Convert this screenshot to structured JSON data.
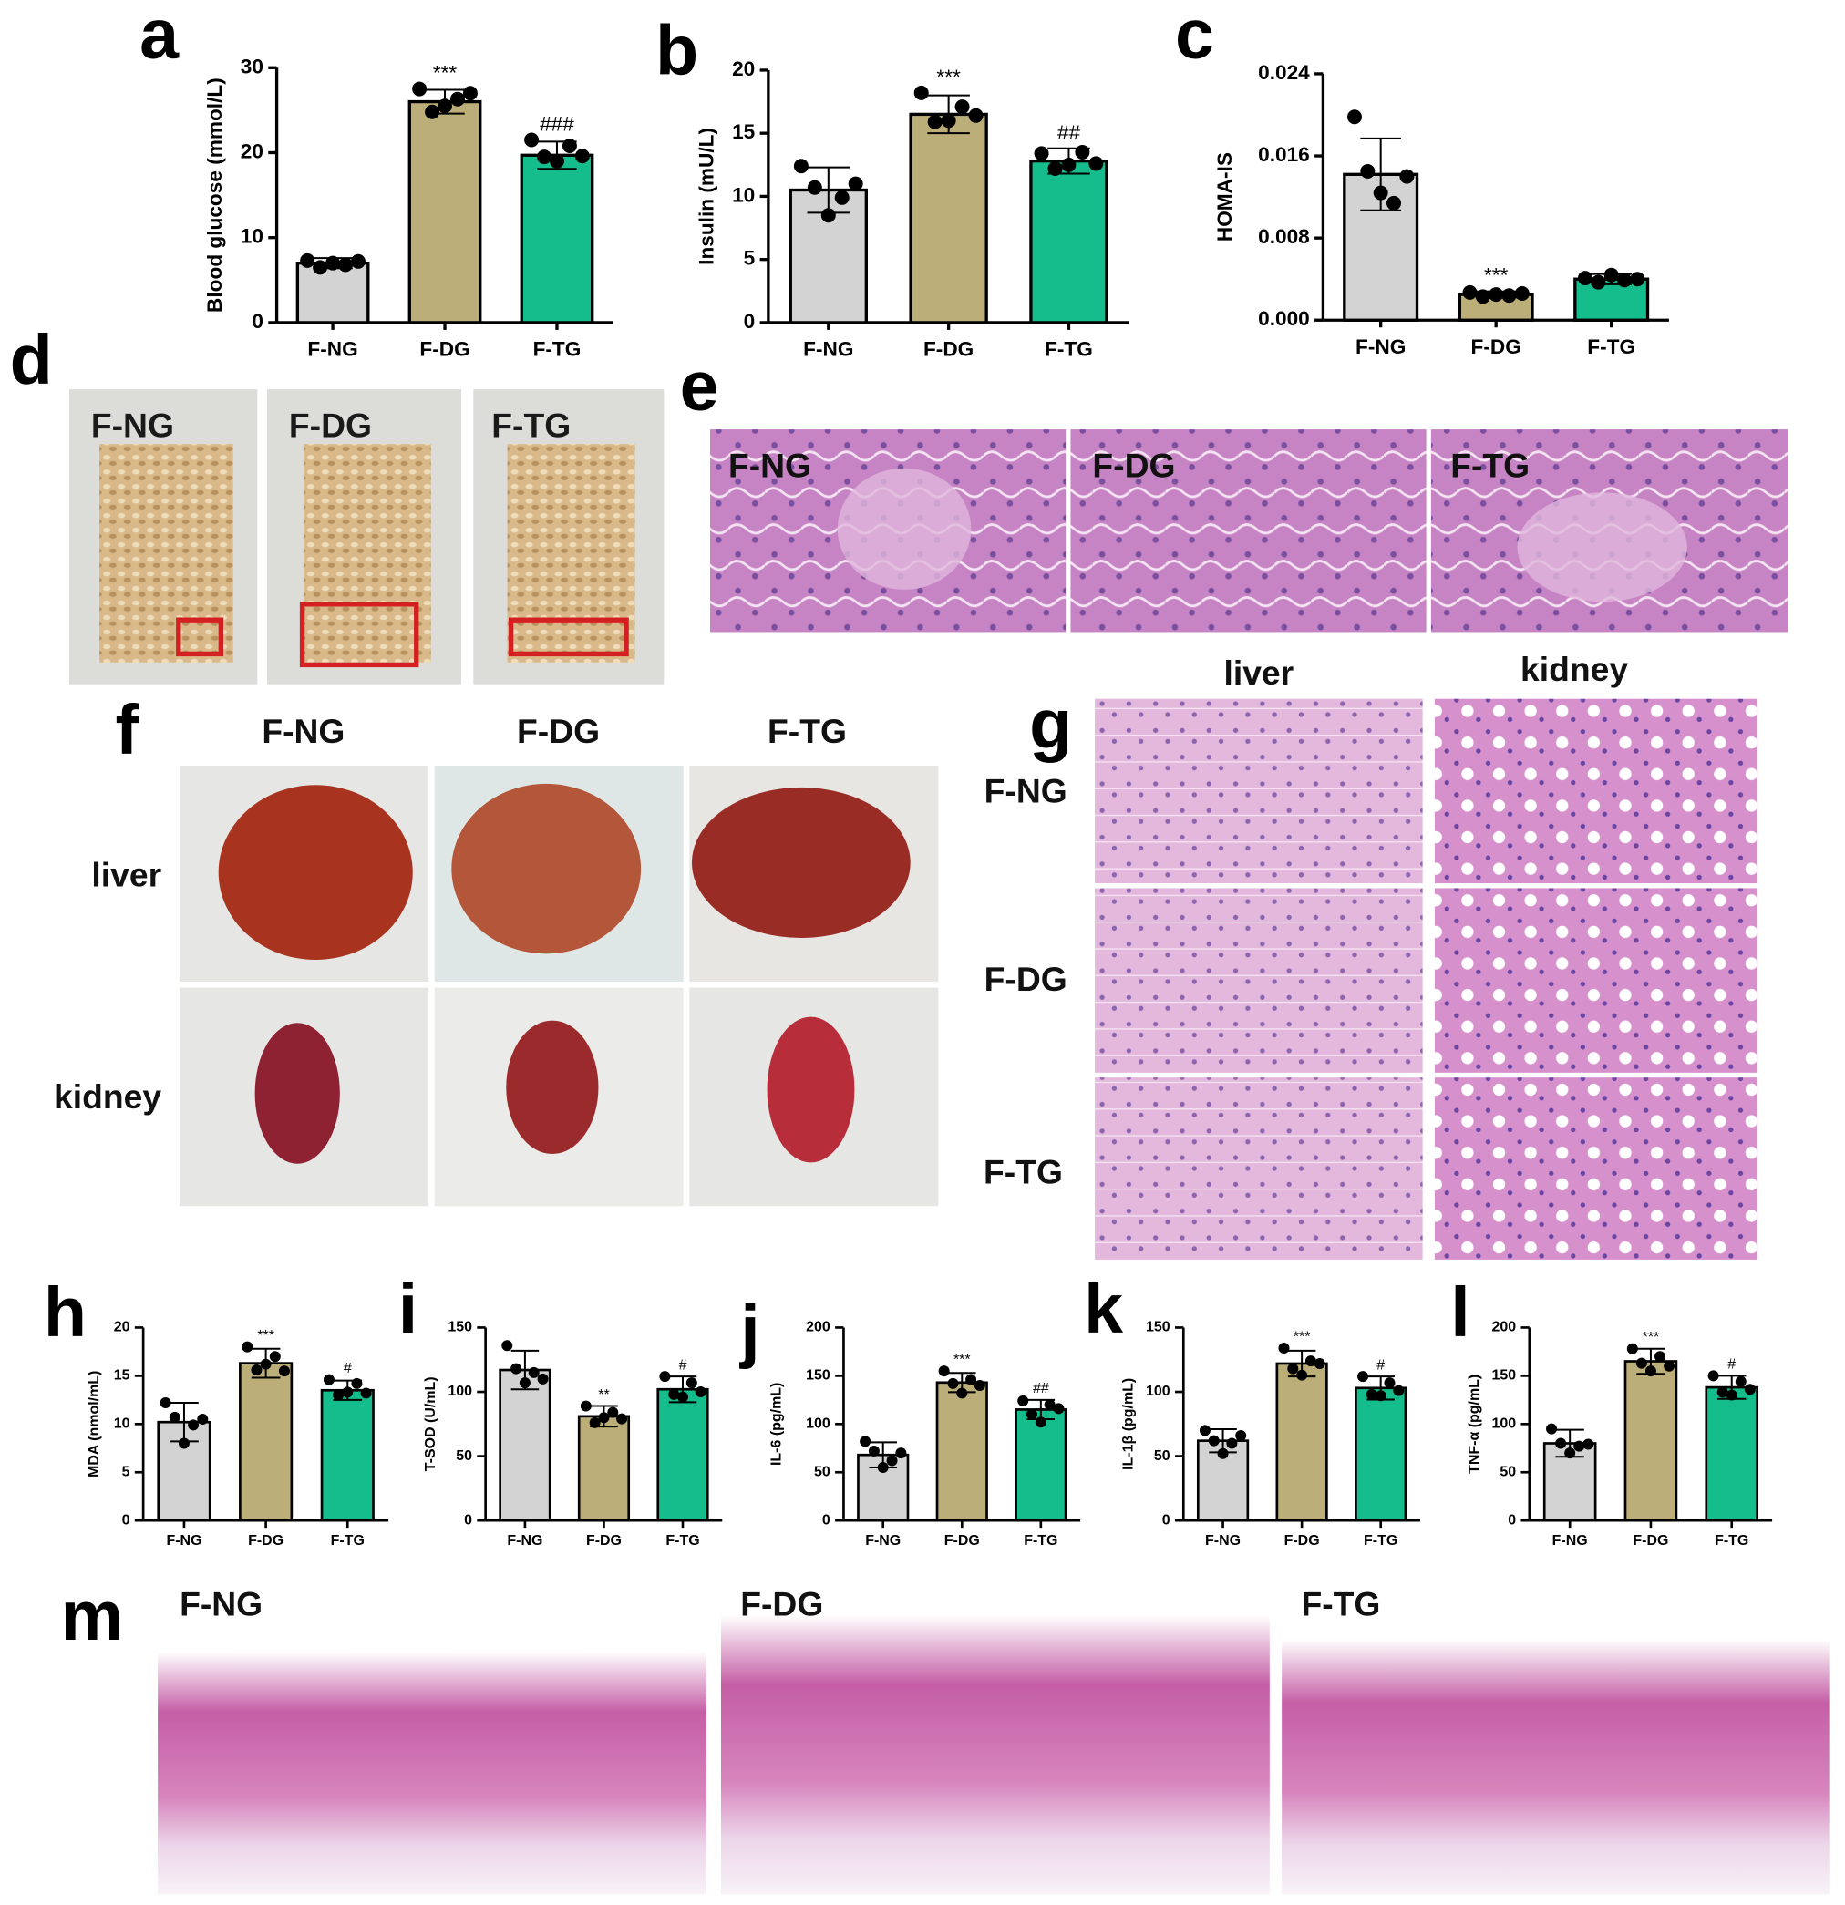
{
  "chart_data": [
    {
      "type": "bar",
      "panel": "a",
      "ylabel": "Blood glucose (mmol/L)",
      "categories": [
        "F-NG",
        "F-DG",
        "F-TG"
      ],
      "values": [
        7.0,
        26.0,
        19.7
      ],
      "errors": [
        0.6,
        1.4,
        1.6
      ],
      "points": [
        [
          7.3,
          6.5,
          7.0,
          6.8,
          7.2
        ],
        [
          27.5,
          24.8,
          25.5,
          26.3,
          27.0
        ],
        [
          21.5,
          19.5,
          19.0,
          20.8,
          19.6
        ]
      ],
      "annotations": [
        null,
        "***",
        "###"
      ],
      "colors": [
        "#d3d3d3",
        "#bcae78",
        "#14bd8b"
      ],
      "ylim": [
        0,
        30
      ],
      "yticks": [
        0,
        10,
        20,
        30
      ]
    },
    {
      "type": "bar",
      "panel": "b",
      "ylabel": "Insulin (mU/L)",
      "categories": [
        "F-NG",
        "F-DG",
        "F-TG"
      ],
      "values": [
        10.5,
        16.5,
        12.8
      ],
      "errors": [
        1.8,
        1.5,
        1.0
      ],
      "points": [
        [
          12.4,
          10.7,
          8.5,
          9.9,
          11.0
        ],
        [
          18.2,
          15.9,
          16.0,
          17.1,
          16.4
        ],
        [
          13.4,
          12.2,
          12.5,
          13.5,
          12.6
        ]
      ],
      "annotations": [
        null,
        "***",
        "##"
      ],
      "colors": [
        "#d3d3d3",
        "#bcae78",
        "#14bd8b"
      ],
      "ylim": [
        0,
        20
      ],
      "yticks": [
        0,
        5,
        10,
        15,
        20
      ]
    },
    {
      "type": "bar",
      "panel": "c",
      "ylabel": "HOMA-IS",
      "categories": [
        "F-NG",
        "F-DG",
        "F-TG"
      ],
      "values": [
        0.0142,
        0.0025,
        0.004
      ],
      "errors": [
        0.0035,
        0.0003,
        0.0005
      ],
      "points": [
        [
          0.0198,
          0.0145,
          0.0124,
          0.0114,
          0.014
        ],
        [
          0.0027,
          0.0023,
          0.0025,
          0.0024,
          0.0026
        ],
        [
          0.0041,
          0.0037,
          0.0044,
          0.0039,
          0.004
        ]
      ],
      "annotations": [
        null,
        "***",
        null
      ],
      "colors": [
        "#d3d3d3",
        "#bcae78",
        "#14bd8b"
      ],
      "ylim": [
        0,
        0.024
      ],
      "yticks": [
        {
          "value": 0,
          "label": "0.000"
        },
        {
          "value": 0.008,
          "label": "0.008"
        },
        {
          "value": 0.016,
          "label": "0.016"
        },
        {
          "value": 0.024,
          "label": "0.024"
        }
      ]
    },
    {
      "type": "bar",
      "panel": "h",
      "ylabel": "MDA (nmol/mL)",
      "categories": [
        "F-NG",
        "F-DG",
        "F-TG"
      ],
      "values": [
        10.2,
        16.3,
        13.5
      ],
      "errors": [
        2.0,
        1.5,
        1.0
      ],
      "points": [
        [
          12.2,
          10.7,
          8.0,
          9.9,
          10.5
        ],
        [
          18.0,
          15.6,
          16.2,
          17.0,
          15.5
        ],
        [
          14.6,
          13.0,
          13.3,
          14.2,
          13.2
        ]
      ],
      "annotations": [
        null,
        "***",
        "#"
      ],
      "colors": [
        "#d3d3d3",
        "#bcae78",
        "#14bd8b"
      ],
      "ylim": [
        0,
        20
      ],
      "yticks": [
        0,
        5,
        10,
        15,
        20
      ]
    },
    {
      "type": "bar",
      "panel": "i",
      "ylabel": "T-SOD (U/mL)",
      "categories": [
        "F-NG",
        "F-DG",
        "F-TG"
      ],
      "values": [
        117,
        81,
        102
      ],
      "errors": [
        15,
        8,
        10
      ],
      "points": [
        [
          136,
          118,
          107,
          115,
          110
        ],
        [
          89,
          76,
          80,
          84,
          79
        ],
        [
          112,
          98,
          96,
          107,
          100
        ]
      ],
      "annotations": [
        null,
        "**",
        "#"
      ],
      "colors": [
        "#d3d3d3",
        "#bcae78",
        "#14bd8b"
      ],
      "ylim": [
        0,
        150
      ],
      "yticks": [
        0,
        50,
        100,
        150
      ]
    },
    {
      "type": "bar",
      "panel": "j",
      "ylabel": "IL-6 (pg/mL)",
      "categories": [
        "F-NG",
        "F-DG",
        "F-TG"
      ],
      "values": [
        68,
        143,
        115
      ],
      "errors": [
        13,
        10,
        10
      ],
      "points": [
        [
          82,
          72,
          55,
          62,
          70
        ],
        [
          155,
          142,
          132,
          146,
          140
        ],
        [
          124,
          110,
          102,
          120,
          116
        ]
      ],
      "annotations": [
        null,
        "***",
        "##"
      ],
      "colors": [
        "#d3d3d3",
        "#bcae78",
        "#14bd8b"
      ],
      "ylim": [
        0,
        200
      ],
      "yticks": [
        0,
        50,
        100,
        150,
        200
      ]
    },
    {
      "type": "bar",
      "panel": "k",
      "ylabel": "IL-1β (pg/mL)",
      "categories": [
        "F-NG",
        "F-DG",
        "F-TG"
      ],
      "values": [
        62,
        122,
        103
      ],
      "errors": [
        9,
        10,
        9
      ],
      "points": [
        [
          70,
          62,
          52,
          60,
          66
        ],
        [
          134,
          118,
          113,
          124,
          122
        ],
        [
          112,
          98,
          97,
          107,
          101
        ]
      ],
      "annotations": [
        null,
        "***",
        "#"
      ],
      "colors": [
        "#d3d3d3",
        "#bcae78",
        "#14bd8b"
      ],
      "ylim": [
        0,
        150
      ],
      "yticks": [
        0,
        50,
        100,
        150
      ]
    },
    {
      "type": "bar",
      "panel": "l",
      "ylabel": "TNF-α (pg/mL)",
      "categories": [
        "F-NG",
        "F-DG",
        "F-TG"
      ],
      "values": [
        80,
        165,
        138
      ],
      "errors": [
        14,
        13,
        12
      ],
      "points": [
        [
          95,
          80,
          70,
          77,
          79
        ],
        [
          178,
          163,
          155,
          170,
          160
        ],
        [
          150,
          133,
          130,
          144,
          136
        ]
      ],
      "annotations": [
        null,
        "***",
        "#"
      ],
      "colors": [
        "#d3d3d3",
        "#bcae78",
        "#14bd8b"
      ],
      "ylim": [
        0,
        200
      ],
      "yticks": [
        0,
        50,
        100,
        150,
        200
      ]
    }
  ],
  "photos": {
    "d": {
      "panel": "d",
      "labels": [
        "F-NG",
        "F-DG",
        "F-TG"
      ]
    },
    "e": {
      "panel": "e",
      "labels": [
        "F-NG",
        "F-DG",
        "F-TG"
      ]
    },
    "f": {
      "panel": "f",
      "columns": [
        "F-NG",
        "F-DG",
        "F-TG"
      ],
      "rows": [
        "liver",
        "kidney"
      ]
    },
    "g": {
      "panel": "g",
      "columns": [
        "liver",
        "kidney"
      ],
      "rows": [
        "F-NG",
        "F-DG",
        "F-TG"
      ]
    },
    "m": {
      "panel": "m",
      "labels": [
        "F-NG",
        "F-DG",
        "F-TG"
      ]
    }
  }
}
